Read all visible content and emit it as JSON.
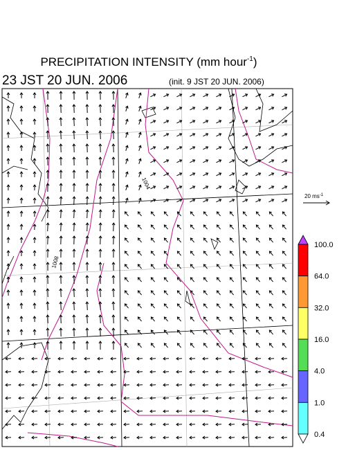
{
  "title": {
    "text": "PRECIPITATION INTENSITY (mm hour",
    "superscript": "-1",
    "close": ")"
  },
  "valid_time": "23 JST 20 JUN. 2006",
  "init_time": "(init. 9 JST 20 JUN. 2006)",
  "vector_legend": {
    "text": "20 ms",
    "superscript": "-1"
  },
  "contour_labels": [
    "1004",
    "1008"
  ],
  "colorbar": {
    "labels": [
      "100.0",
      "64.0",
      "32.0",
      "16.0",
      "4.0",
      "1.0",
      "0.4"
    ],
    "colors": [
      "#c040ff",
      "#ff0000",
      "#ff9933",
      "#ffff66",
      "#55dd55",
      "#6666ff",
      "#66ffff",
      "#ffffff"
    ]
  }
}
